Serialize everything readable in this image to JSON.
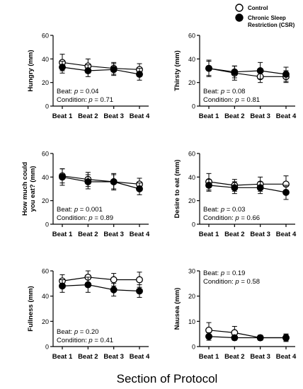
{
  "legend": {
    "control": "Control",
    "csr_line1": "Chronic Sleep",
    "csr_line2": "Restriction (CSR)"
  },
  "x_title": "Section of Protocol",
  "chart_data": [
    {
      "type": "line",
      "categories": [
        "Beat 1",
        "Beat 2",
        "Beat 3",
        "Beat 4"
      ],
      "ylabel": [
        "Hungry (mm)"
      ],
      "ylim": [
        0,
        60
      ],
      "yticks": [
        0,
        20,
        40,
        60
      ],
      "stats": [
        "Beat: p = 0.04",
        "Condition: p = 0.71"
      ],
      "stat_pos": "bottom-left",
      "series": [
        {
          "name": "Control",
          "values": [
            37,
            34,
            32,
            31
          ],
          "err": [
            7,
            6,
            5,
            5
          ],
          "marker": "open"
        },
        {
          "name": "Chronic Sleep Restriction (CSR)",
          "values": [
            33,
            30,
            31,
            27
          ],
          "err": [
            5,
            5,
            5,
            5
          ],
          "marker": "filled"
        }
      ]
    },
    {
      "type": "line",
      "categories": [
        "Beat 1",
        "Beat 2",
        "Beat 3",
        "Beat 4"
      ],
      "ylabel": [
        "Thirsty (mm)"
      ],
      "ylim": [
        0,
        60
      ],
      "yticks": [
        0,
        20,
        40,
        60
      ],
      "stats": [
        "Beat: p = 0.08",
        "Condition: p = 0.81"
      ],
      "stat_pos": "bottom-left",
      "series": [
        {
          "name": "Control",
          "values": [
            32,
            28,
            25,
            25
          ],
          "err": [
            7,
            6,
            5,
            5
          ],
          "marker": "open"
        },
        {
          "name": "Chronic Sleep Restriction (CSR)",
          "values": [
            32,
            29,
            30,
            27
          ],
          "err": [
            6,
            5,
            7,
            6
          ],
          "marker": "filled"
        }
      ]
    },
    {
      "type": "line",
      "categories": [
        "Beat 1",
        "Beat 2",
        "Beat 3",
        "Beat 4"
      ],
      "ylabel": [
        "How much could",
        "you eat? (mm)"
      ],
      "ylim": [
        0,
        60
      ],
      "yticks": [
        0,
        20,
        40,
        60
      ],
      "stats": [
        "Beat: p = 0.001",
        "Condition: p = 0.89"
      ],
      "stat_pos": "bottom-left",
      "series": [
        {
          "name": "Control",
          "values": [
            41,
            38,
            36,
            34
          ],
          "err": [
            6,
            6,
            7,
            5
          ],
          "marker": "open"
        },
        {
          "name": "Chronic Sleep Restriction (CSR)",
          "values": [
            40,
            36,
            36,
            30
          ],
          "err": [
            7,
            6,
            6,
            5
          ],
          "marker": "filled"
        }
      ]
    },
    {
      "type": "line",
      "categories": [
        "Beat 1",
        "Beat 2",
        "Beat 3",
        "Beat 4"
      ],
      "ylabel": [
        "Desire to eat (mm)"
      ],
      "ylim": [
        0,
        60
      ],
      "yticks": [
        0,
        20,
        40,
        60
      ],
      "stats": [
        "Beat: p = 0.03",
        "Condition: p = 0.66"
      ],
      "stat_pos": "bottom-left",
      "series": [
        {
          "name": "Control",
          "values": [
            36,
            33,
            34,
            34
          ],
          "err": [
            7,
            5,
            6,
            7
          ],
          "marker": "open"
        },
        {
          "name": "Chronic Sleep Restriction (CSR)",
          "values": [
            33,
            31,
            31,
            27
          ],
          "err": [
            5,
            5,
            5,
            6
          ],
          "marker": "filled"
        }
      ]
    },
    {
      "type": "line",
      "categories": [
        "Beat 1",
        "Beat 2",
        "Beat 3",
        "Beat 4"
      ],
      "ylabel": [
        "Fullness (mm)"
      ],
      "ylim": [
        0,
        60
      ],
      "yticks": [
        0,
        20,
        40,
        60
      ],
      "stats": [
        "Beat: p = 0.20",
        "Condition: p = 0.41"
      ],
      "stat_pos": "bottom-left",
      "series": [
        {
          "name": "Control",
          "values": [
            52,
            55,
            53,
            53
          ],
          "err": [
            5,
            5,
            5,
            6
          ],
          "marker": "open"
        },
        {
          "name": "Chronic Sleep Restriction (CSR)",
          "values": [
            48,
            49,
            45,
            44
          ],
          "err": [
            5,
            6,
            5,
            5
          ],
          "marker": "filled"
        }
      ]
    },
    {
      "type": "line",
      "categories": [
        "Beat 1",
        "Beat 2",
        "Beat 3",
        "Beat 4"
      ],
      "ylabel": [
        "Nausea (mm)"
      ],
      "ylim": [
        0,
        30
      ],
      "yticks": [
        0,
        10,
        20,
        30
      ],
      "stats": [
        "Beat: p = 0.19",
        "Condition: p = 0.58"
      ],
      "stat_pos": "top-left",
      "series": [
        {
          "name": "Control",
          "values": [
            6.5,
            5.5,
            3.5,
            3.5
          ],
          "err": [
            3,
            2.5,
            1,
            1.5
          ],
          "marker": "open"
        },
        {
          "name": "Chronic Sleep Restriction (CSR)",
          "values": [
            4,
            3.5,
            3.5,
            3.5
          ],
          "err": [
            1.5,
            1,
            1,
            1.2
          ],
          "marker": "filled"
        }
      ]
    }
  ]
}
